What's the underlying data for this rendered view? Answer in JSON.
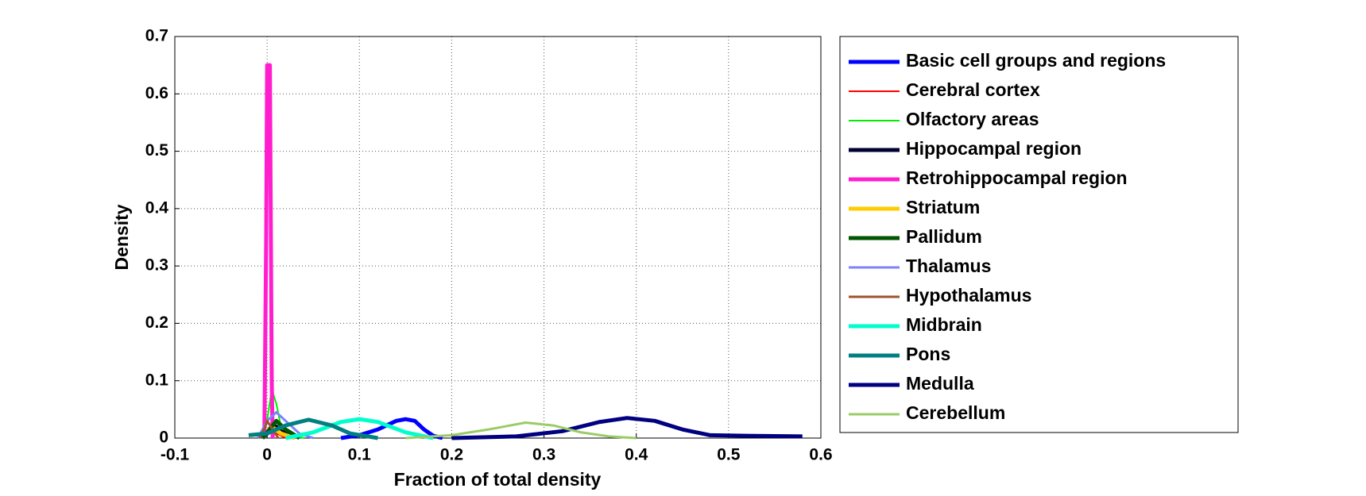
{
  "chart_data": {
    "type": "line",
    "xlabel": "Fraction of total density",
    "ylabel": "Density",
    "xlim": [
      -0.1,
      0.6
    ],
    "xticks": [
      -0.1,
      0,
      0.1,
      0.2,
      0.3,
      0.4,
      0.5,
      0.6
    ],
    "ylim": [
      0,
      0.7
    ],
    "yticks": [
      0,
      0.1,
      0.2,
      0.3,
      0.4,
      0.5,
      0.6,
      0.7
    ],
    "grid": true,
    "legend": "outside-right",
    "series": [
      {
        "name": "Basic cell groups and regions",
        "color": "#0000ff",
        "width": 5,
        "x": [
          0.08,
          0.1,
          0.12,
          0.14,
          0.15,
          0.16,
          0.17,
          0.18,
          0.19
        ],
        "values": [
          0,
          0.005,
          0.015,
          0.03,
          0.033,
          0.03,
          0.015,
          0.004,
          0
        ]
      },
      {
        "name": "Cerebral cortex",
        "color": "#ff0000",
        "width": 2,
        "x": [
          -0.005,
          0,
          0.003,
          0.008,
          0.02
        ],
        "values": [
          0,
          0.01,
          0.02,
          0.01,
          0
        ]
      },
      {
        "name": "Olfactory areas",
        "color": "#00ee00",
        "width": 2,
        "x": [
          -0.005,
          0,
          0.005,
          0.01,
          0.015,
          0.025,
          0.04
        ],
        "values": [
          0,
          0.03,
          0.085,
          0.06,
          0.02,
          0.005,
          0
        ]
      },
      {
        "name": "Hippocampal region",
        "color": "#000033",
        "width": 5,
        "x": [
          -0.005,
          0.005,
          0.01,
          0.015,
          0.03
        ],
        "values": [
          0,
          0.015,
          0.02,
          0.012,
          0
        ]
      },
      {
        "name": "Retrohippocampal region",
        "color": "#ff1dce",
        "width": 5,
        "x": [
          -0.003,
          -0.001,
          0,
          0.003,
          0.005,
          0.006
        ],
        "values": [
          0,
          0.35,
          0.65,
          0.65,
          0.1,
          0
        ]
      },
      {
        "name": "Striatum",
        "color": "#ffcc00",
        "width": 5,
        "x": [
          -0.005,
          0.005,
          0.015,
          0.03
        ],
        "values": [
          0,
          0.02,
          0.008,
          0
        ]
      },
      {
        "name": "Pallidum",
        "color": "#005500",
        "width": 5,
        "x": [
          -0.005,
          0.005,
          0.01,
          0.02,
          0.035
        ],
        "values": [
          0,
          0.02,
          0.03,
          0.015,
          0
        ]
      },
      {
        "name": "Thalamus",
        "color": "#8080ff",
        "width": 3,
        "x": [
          -0.01,
          0,
          0.01,
          0.02,
          0.035,
          0.05
        ],
        "values": [
          0,
          0.03,
          0.045,
          0.03,
          0.008,
          0
        ]
      },
      {
        "name": "Hypothalamus",
        "color": "#a0522d",
        "width": 3,
        "x": [
          -0.008,
          -0.002,
          0,
          0.004,
          0.012
        ],
        "values": [
          0,
          0.02,
          0.03,
          0.02,
          0
        ]
      },
      {
        "name": "Midbrain",
        "color": "#00ffcc",
        "width": 5,
        "x": [
          0.02,
          0.05,
          0.08,
          0.1,
          0.12,
          0.15,
          0.18
        ],
        "values": [
          0,
          0.01,
          0.028,
          0.033,
          0.028,
          0.01,
          0
        ]
      },
      {
        "name": "Pons",
        "color": "#008080",
        "width": 5,
        "x": [
          -0.02,
          0,
          0.02,
          0.045,
          0.07,
          0.09,
          0.12
        ],
        "values": [
          0.005,
          0.008,
          0.022,
          0.032,
          0.022,
          0.008,
          0
        ]
      },
      {
        "name": "Medulla",
        "color": "#000080",
        "width": 5,
        "x": [
          0.2,
          0.27,
          0.32,
          0.36,
          0.39,
          0.42,
          0.45,
          0.48,
          0.52,
          0.58
        ],
        "values": [
          0,
          0.003,
          0.012,
          0.028,
          0.035,
          0.03,
          0.015,
          0.005,
          0.004,
          0.003
        ]
      },
      {
        "name": "Cerebellum",
        "color": "#99cc66",
        "width": 3,
        "x": [
          0.15,
          0.2,
          0.24,
          0.28,
          0.31,
          0.34,
          0.37,
          0.4
        ],
        "values": [
          0,
          0.005,
          0.015,
          0.027,
          0.022,
          0.01,
          0.003,
          0
        ]
      }
    ]
  }
}
